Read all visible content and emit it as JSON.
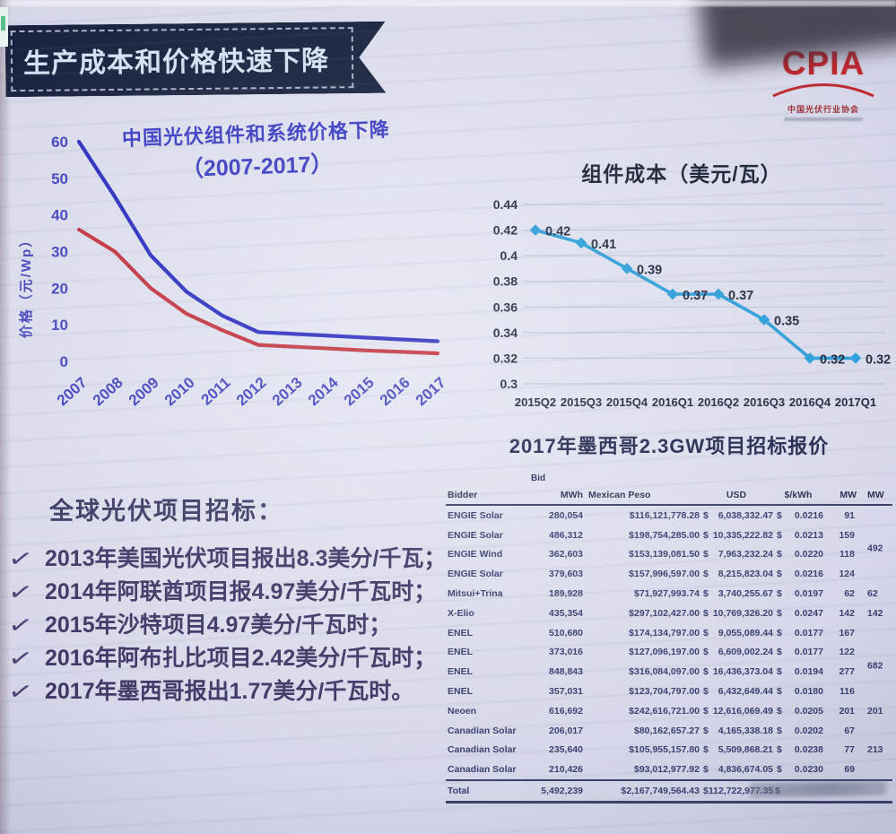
{
  "slide": {
    "title": "生产成本和价格快速下降",
    "logo": {
      "text": "CPIA",
      "subtext": "中国光伏行业协会",
      "color": "#c1272d"
    }
  },
  "colors": {
    "ribbon_bg": "#19233f",
    "blue_series": "#2b2fc0",
    "red_series": "#c23540",
    "axis_blue": "#4345bd",
    "module_cost_line": "#2e9ed9",
    "table_text": "#3a4070"
  },
  "left_panel": {
    "heading": "全球光伏项目招标：",
    "bullet_mark": "✓",
    "bullets": [
      "2013年美国光伏项目报出8.3美分/千瓦；",
      "2014年阿联酋项目报4.97美分/千瓦时；",
      "2015年沙特项目4.97美分/千瓦时；",
      "2016年阿布扎比项目2.42美分/千瓦时；",
      "2017年墨西哥报出1.77美分/千瓦时。"
    ]
  },
  "chart_data": [
    {
      "type": "line",
      "title": "中国光伏组件和系统价格下降",
      "subtitle": "（2007-2017）",
      "xlabel": "",
      "ylabel": "价格（元/Wp）",
      "x": [
        "2007",
        "2008",
        "2009",
        "2010",
        "2011",
        "2012",
        "2013",
        "2014",
        "2015",
        "2016",
        "2017"
      ],
      "yticks": [
        60,
        50,
        40,
        30,
        20,
        10,
        0
      ],
      "ylim": [
        0,
        60
      ],
      "grid": false,
      "legend": "none",
      "series": [
        {
          "name": "blue-line-system-price",
          "color": "#2b2fc0",
          "values": [
            60,
            45,
            29,
            19,
            12.5,
            8,
            7.5,
            7,
            6.5,
            6,
            5.5
          ]
        },
        {
          "name": "red-line-module-price",
          "color": "#c23540",
          "values": [
            36,
            30,
            20,
            13,
            8.5,
            4.5,
            4,
            3.5,
            3,
            2.6,
            2.2
          ]
        }
      ]
    },
    {
      "type": "line",
      "title": "组件成本（美元/瓦）",
      "xlabel": "",
      "ylabel": "",
      "x": [
        "2015Q2",
        "2015Q3",
        "2015Q4",
        "2016Q1",
        "2016Q2",
        "2016Q3",
        "2016Q4",
        "2017Q1"
      ],
      "values": [
        0.42,
        0.41,
        0.39,
        0.37,
        0.37,
        0.35,
        0.32,
        0.32
      ],
      "point_labels": [
        "0.42",
        "0.41",
        "0.39",
        "0.37",
        "0.37",
        "0.35",
        "0.32",
        "0.32"
      ],
      "ytick_labels": [
        "0.44",
        "0.42",
        "0.4",
        "0.38",
        "0.36",
        "0.34",
        "0.32",
        "0.3"
      ],
      "ylim": [
        0.3,
        0.44
      ],
      "grid": true,
      "legend": "none",
      "color": "#2e9ed9"
    }
  ],
  "table": {
    "title": "2017年墨西哥2.3GW项目招标报价",
    "bid_label": "Bid",
    "columns": [
      "Bidder",
      "MWh",
      "Mexican Peso",
      "USD",
      "$/kWh",
      "MW",
      "MW"
    ],
    "rows": [
      {
        "bidder": "ENGIE Solar",
        "mwh": "280,054",
        "peso": "$116,121,778.28",
        "usd": "6,038,332.47",
        "kwh": "0.0216",
        "mw": "91",
        "mw2": ""
      },
      {
        "bidder": "ENGIE Solar",
        "mwh": "486,312",
        "peso": "$198,754,285.00",
        "usd": "10,335,222.82",
        "kwh": "0.0213",
        "mw": "159",
        "mw2": ""
      },
      {
        "bidder": "ENGIE Wind",
        "mwh": "362,603",
        "peso": "$153,139,081.50",
        "usd": "7,963,232.24",
        "kwh": "0.0220",
        "mw": "118",
        "mw2": "492",
        "mw2_span": true
      },
      {
        "bidder": "ENGIE Solar",
        "mwh": "379,603",
        "peso": "$157,996,597.00",
        "usd": "8,215,823.04",
        "kwh": "0.0216",
        "mw": "124",
        "mw2": ""
      },
      {
        "bidder": "Mitsui+Trina",
        "mwh": "189,928",
        "peso": "$71,927,993.74",
        "usd": "3,740,255.67",
        "kwh": "0.0197",
        "mw": "62",
        "mw2": "62"
      },
      {
        "bidder": "X-Elio",
        "mwh": "435,354",
        "peso": "$297,102,427.00",
        "usd": "10,769,326.20",
        "kwh": "0.0247",
        "mw": "142",
        "mw2": "142"
      },
      {
        "bidder": "ENEL",
        "mwh": "510,680",
        "peso": "$174,134,797.00",
        "usd": "9,055,089.44",
        "kwh": "0.0177",
        "mw": "167",
        "mw2": ""
      },
      {
        "bidder": "ENEL",
        "mwh": "373,016",
        "peso": "$127,096,197.00",
        "usd": "6,609,002.24",
        "kwh": "0.0177",
        "mw": "122",
        "mw2": ""
      },
      {
        "bidder": "ENEL",
        "mwh": "848,843",
        "peso": "$316,084,097.00",
        "usd": "16,436,373.04",
        "kwh": "0.0194",
        "mw": "277",
        "mw2": "682",
        "mw2_span": true
      },
      {
        "bidder": "ENEL",
        "mwh": "357,031",
        "peso": "$123,704,797.00",
        "usd": "6,432,649.44",
        "kwh": "0.0180",
        "mw": "116",
        "mw2": ""
      },
      {
        "bidder": "Neoen",
        "mwh": "616,692",
        "peso": "$242,616,721.00",
        "usd": "12,616,069.49",
        "kwh": "0.0205",
        "mw": "201",
        "mw2": "201"
      },
      {
        "bidder": "Canadian Solar",
        "mwh": "206,017",
        "peso": "$80,162,657.27",
        "usd": "4,165,338.18",
        "kwh": "0.0202",
        "mw": "67",
        "mw2": ""
      },
      {
        "bidder": "Canadian Solar",
        "mwh": "235,640",
        "peso": "$105,955,157.80",
        "usd": "5,509,868.21",
        "kwh": "0.0238",
        "mw": "77",
        "mw2": "213"
      },
      {
        "bidder": "Canadian Solar",
        "mwh": "210,426",
        "peso": "$93,012,977.92",
        "usd": "4,836,674.05",
        "kwh": "0.0230",
        "mw": "69",
        "mw2": ""
      }
    ],
    "total": {
      "label": "Total",
      "mwh": "5,492,239",
      "peso": "$2,167,749,564.43",
      "usd": "112,722,977.35",
      "kwh_prefix": "$"
    }
  }
}
